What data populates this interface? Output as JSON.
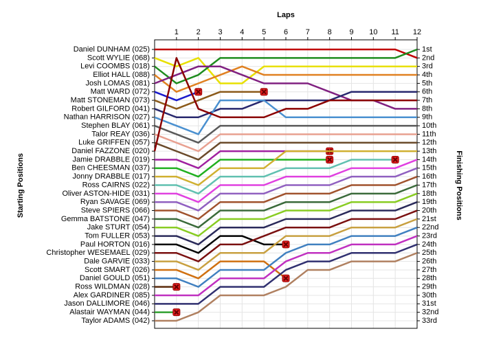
{
  "chart_data": {
    "type": "lap",
    "x_label": "Laps",
    "y_label": "Starting Positions",
    "y2_label": "Finishing Positions",
    "xlim": [
      0,
      12
    ],
    "xticks": [
      1,
      2,
      3,
      4,
      5,
      6,
      7,
      8,
      9,
      10,
      11,
      12
    ],
    "ylim": [
      1,
      33
    ],
    "grid": true,
    "y2ticks": [
      {
        "value": 1,
        "label": "1st"
      },
      {
        "value": 2,
        "label": "2nd"
      },
      {
        "value": 3,
        "label": "3rd"
      },
      {
        "value": 4,
        "label": "4th"
      },
      {
        "value": 5,
        "label": "5th"
      },
      {
        "value": 6,
        "label": "6th"
      },
      {
        "value": 7,
        "label": "7th"
      },
      {
        "value": 8,
        "label": "8th"
      },
      {
        "value": 9,
        "label": "9th"
      },
      {
        "value": 10,
        "label": "10th"
      },
      {
        "value": 11,
        "label": "11th"
      },
      {
        "value": 12,
        "label": "12th"
      },
      {
        "value": 13,
        "label": "13th"
      },
      {
        "value": 14,
        "label": "14th"
      },
      {
        "value": 15,
        "label": "15th"
      },
      {
        "value": 16,
        "label": "16th"
      },
      {
        "value": 17,
        "label": "17th"
      },
      {
        "value": 18,
        "label": "18th"
      },
      {
        "value": 19,
        "label": "19th"
      },
      {
        "value": 20,
        "label": "20th"
      },
      {
        "value": 21,
        "label": "21st"
      },
      {
        "value": 22,
        "label": "22nd"
      },
      {
        "value": 23,
        "label": "23rd"
      },
      {
        "value": 24,
        "label": "24th"
      },
      {
        "value": 25,
        "label": "25th"
      },
      {
        "value": 26,
        "label": "26th"
      },
      {
        "value": 27,
        "label": "27th"
      },
      {
        "value": 28,
        "label": "28th"
      },
      {
        "value": 29,
        "label": "29th"
      },
      {
        "value": 30,
        "label": "30th"
      },
      {
        "value": 31,
        "label": "31st"
      },
      {
        "value": 32,
        "label": "32nd"
      },
      {
        "value": 33,
        "label": "33rd"
      }
    ],
    "x": [
      0,
      1,
      2,
      3,
      4,
      5,
      6,
      7,
      8,
      9,
      10,
      11,
      12
    ],
    "series": [
      {
        "name": "Daniel DUNHAM (025)",
        "color": "#c00000",
        "values": [
          1,
          1,
          1,
          1,
          1,
          1,
          1,
          1,
          1,
          1,
          1,
          1,
          2
        ]
      },
      {
        "name": "Scott WYLIE (068)",
        "color": "#e8e000",
        "values": [
          2,
          3,
          2,
          5,
          5,
          3,
          3,
          3,
          3,
          3,
          3,
          3,
          3
        ]
      },
      {
        "name": "Levi COOMBS (018)",
        "color": "#1e8c1e",
        "values": [
          3,
          5,
          4,
          2,
          2,
          2,
          2,
          2,
          2,
          2,
          2,
          2,
          1
        ]
      },
      {
        "name": "Elliot HALL (088)",
        "color": "#e08020",
        "values": [
          4,
          6,
          5,
          4,
          3,
          4,
          4,
          4,
          4,
          4,
          4,
          4,
          4
        ]
      },
      {
        "name": "Josh LOMAS (081)",
        "color": "#802080",
        "values": [
          5,
          4,
          3,
          3,
          4,
          5,
          5,
          5,
          6,
          7,
          7,
          8,
          8
        ]
      },
      {
        "name": "Matt WARD (072)",
        "color": "#1a1acc",
        "values": [
          6,
          7,
          6,
          null,
          null,
          null,
          null,
          null,
          null,
          null,
          null,
          null,
          null
        ]
      },
      {
        "name": "Matt STONEMAN (073)",
        "color": "#8b5a1a",
        "values": [
          7,
          8,
          7,
          6,
          6,
          6,
          null,
          null,
          null,
          null,
          null,
          null,
          null
        ]
      },
      {
        "name": "Robert GILFORD (041)",
        "color": "#28286e",
        "values": [
          8,
          9,
          9,
          8,
          8,
          7,
          7,
          7,
          7,
          6,
          6,
          6,
          6
        ]
      },
      {
        "name": "Nathan HARRISON (027)",
        "color": "#4a90d0",
        "values": [
          9,
          10,
          11,
          7,
          7,
          7,
          9,
          9,
          9,
          9,
          9,
          9,
          9
        ]
      },
      {
        "name": "Stephen BLAY (061)",
        "color": "#5a5a5a",
        "values": [
          10,
          11,
          12,
          10,
          10,
          10,
          10,
          10,
          10,
          10,
          10,
          10,
          10
        ]
      },
      {
        "name": "Talor REAY (036)",
        "color": "#e8a090",
        "values": [
          11,
          12,
          13,
          11,
          11,
          11,
          11,
          11,
          11,
          11,
          11,
          11,
          11
        ]
      },
      {
        "name": "Luke GRIFFEN (057)",
        "color": "#6a4a2a",
        "values": [
          12,
          13,
          14,
          12,
          12,
          12,
          12,
          12,
          12,
          12,
          12,
          12,
          12
        ]
      },
      {
        "name": "Daniel FAZZONE (020)",
        "color": "#8b0000",
        "values": [
          13,
          2,
          8,
          9,
          9,
          9,
          8,
          8,
          7,
          7,
          7,
          7,
          7
        ]
      },
      {
        "name": "Jamie DRABBLE (019)",
        "color": "#a020a0",
        "values": [
          14,
          14,
          15,
          13,
          13,
          13,
          13,
          13,
          13,
          null,
          null,
          null,
          null
        ]
      },
      {
        "name": "Ben CHEESMAN (037)",
        "color": "#20b020",
        "values": [
          15,
          15,
          16,
          14,
          14,
          14,
          14,
          14,
          14,
          null,
          null,
          null,
          null
        ]
      },
      {
        "name": "Jonny DRABBLE (017)",
        "color": "#d0b030",
        "values": [
          16,
          16,
          17,
          15,
          15,
          15,
          13,
          13,
          13,
          13,
          13,
          13,
          13
        ]
      },
      {
        "name": "Ross CAIRNS (022)",
        "color": "#60c0b0",
        "values": [
          17,
          17,
          18,
          16,
          16,
          16,
          15,
          15,
          15,
          14,
          14,
          14,
          null
        ]
      },
      {
        "name": "Oliver ASTON-HIDE (031)",
        "color": "#e040e0",
        "values": [
          18,
          18,
          19,
          17,
          17,
          17,
          16,
          16,
          16,
          15,
          15,
          15,
          14
        ]
      },
      {
        "name": "Ryan SAVAGE (069)",
        "color": "#9060c0",
        "values": [
          19,
          19,
          20,
          18,
          18,
          18,
          17,
          17,
          17,
          16,
          16,
          16,
          15
        ]
      },
      {
        "name": "Steve SPIERS (066)",
        "color": "#a0522d",
        "values": [
          20,
          20,
          21,
          19,
          19,
          19,
          18,
          18,
          18,
          17,
          17,
          17,
          16
        ]
      },
      {
        "name": "Gemma BATSTONE (047)",
        "color": "#3a6a3a",
        "values": [
          21,
          21,
          22,
          20,
          20,
          20,
          19,
          19,
          19,
          18,
          18,
          18,
          17
        ]
      },
      {
        "name": "Jake STURT (054)",
        "color": "#88cc22",
        "values": [
          22,
          22,
          23,
          21,
          21,
          21,
          20,
          20,
          20,
          19,
          19,
          19,
          18
        ]
      },
      {
        "name": "Tom FULLER (053)",
        "color": "#2a2a5a",
        "values": [
          23,
          23,
          24,
          22,
          22,
          22,
          21,
          21,
          21,
          20,
          20,
          20,
          19
        ]
      },
      {
        "name": "Paul HORTON (016)",
        "color": "#000000",
        "values": [
          24,
          24,
          25,
          23,
          23,
          24,
          24,
          null,
          null,
          null,
          null,
          null,
          null
        ]
      },
      {
        "name": "Christopher WESEMAEL (029)",
        "color": "#7a1010",
        "values": [
          25,
          25,
          26,
          24,
          24,
          23,
          22,
          22,
          22,
          21,
          21,
          21,
          20
        ]
      },
      {
        "name": "Dale GARVIE (033)",
        "color": "#c8a040",
        "values": [
          26,
          26,
          27,
          25,
          25,
          25,
          23,
          23,
          23,
          22,
          22,
          22,
          21
        ]
      },
      {
        "name": "Scott SMART (026)",
        "color": "#d07010",
        "values": [
          27,
          27,
          28,
          26,
          26,
          26,
          28,
          null,
          null,
          null,
          null,
          null,
          null
        ]
      },
      {
        "name": "Daniel GOULD (051)",
        "color": "#4080c0",
        "values": [
          28,
          28,
          29,
          27,
          27,
          27,
          25,
          24,
          24,
          23,
          23,
          23,
          22
        ]
      },
      {
        "name": "Ross WILDMAN (028)",
        "color": "#5a2a0a",
        "values": [
          29,
          29,
          null,
          null,
          null,
          null,
          null,
          null,
          null,
          null,
          null,
          null,
          null
        ]
      },
      {
        "name": "Alex GARDINER (085)",
        "color": "#c030c0",
        "values": [
          30,
          30,
          30,
          28,
          28,
          28,
          26,
          25,
          25,
          24,
          24,
          24,
          23
        ]
      },
      {
        "name": "Jason DALLIMORE (046)",
        "color": "#303070",
        "values": [
          31,
          31,
          31,
          29,
          29,
          29,
          27,
          26,
          26,
          25,
          25,
          25,
          24
        ]
      },
      {
        "name": "Alastair WAYMAN (044)",
        "color": "#30a030",
        "values": [
          32,
          32,
          null,
          null,
          null,
          null,
          null,
          null,
          null,
          null,
          null,
          null,
          null
        ]
      },
      {
        "name": "Taylor ADAMS (042)",
        "color": "#b08060",
        "values": [
          33,
          33,
          32,
          30,
          30,
          30,
          29,
          27,
          27,
          26,
          26,
          26,
          25
        ]
      }
    ]
  }
}
